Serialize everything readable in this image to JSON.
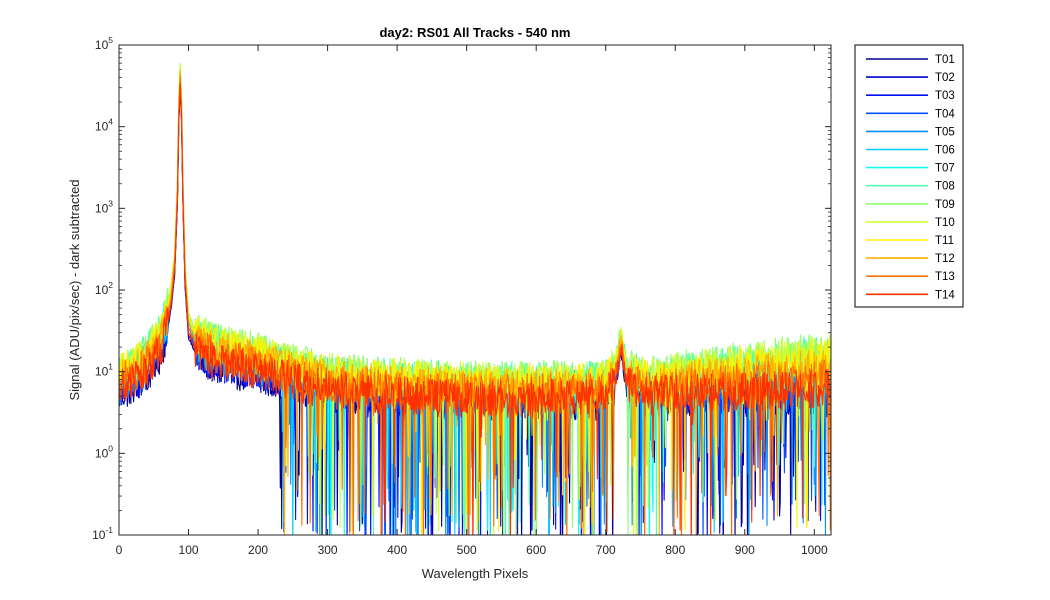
{
  "chart_data": {
    "type": "line",
    "title": "day2: RS01  All Tracks - 540 nm",
    "xlabel": "Wavelength Pixels",
    "ylabel": "Signal (ADU/pix/sec) - dark subtracted",
    "xlim": [
      0,
      1024
    ],
    "ylim": [
      0.1,
      100000
    ],
    "yscale": "log",
    "grid": false,
    "legend_position": "outside-right",
    "x_ticks": [
      0,
      100,
      200,
      300,
      400,
      500,
      600,
      700,
      800,
      900,
      1000
    ],
    "y_ticks": [
      {
        "value": 0.1,
        "base": "10",
        "exp": "-1"
      },
      {
        "value": 1,
        "base": "10",
        "exp": "0"
      },
      {
        "value": 10,
        "base": "10",
        "exp": "1"
      },
      {
        "value": 100,
        "base": "10",
        "exp": "2"
      },
      {
        "value": 1000,
        "base": "10",
        "exp": "3"
      },
      {
        "value": 10000,
        "base": "10",
        "exp": "4"
      },
      {
        "value": 100000,
        "base": "10",
        "exp": "5"
      }
    ],
    "profile_points": {
      "x": [
        0,
        20,
        40,
        60,
        70,
        75,
        80,
        84,
        86,
        88,
        90,
        92,
        95,
        100,
        110,
        130,
        150,
        200,
        250,
        300,
        400,
        500,
        600,
        680,
        700,
        712,
        718,
        722,
        726,
        730,
        740,
        760,
        800,
        900,
        1024
      ],
      "y": [
        7,
        9,
        12,
        22,
        45,
        80,
        200,
        1500,
        15000,
        40000,
        15000,
        1500,
        150,
        35,
        22,
        17,
        15,
        12,
        9,
        7,
        6,
        5.5,
        5.5,
        5.5,
        6,
        8,
        14,
        22,
        14,
        8,
        7,
        6,
        6,
        6,
        6
      ]
    },
    "series": [
      {
        "name": "T01",
        "color": "#00008f",
        "scale": 0.75
      },
      {
        "name": "T02",
        "color": "#0000cf",
        "scale": 0.8
      },
      {
        "name": "T03",
        "color": "#0010ff",
        "scale": 0.85
      },
      {
        "name": "T04",
        "color": "#0050ff",
        "scale": 0.9
      },
      {
        "name": "T05",
        "color": "#0090ff",
        "scale": 1.0
      },
      {
        "name": "T06",
        "color": "#00d0ff",
        "scale": 1.1
      },
      {
        "name": "T07",
        "color": "#10ffef",
        "scale": 1.25
      },
      {
        "name": "T08",
        "color": "#50ffaf",
        "scale": 1.4
      },
      {
        "name": "T09",
        "color": "#8fff70",
        "scale": 1.45
      },
      {
        "name": "T10",
        "color": "#cfff30",
        "scale": 1.4
      },
      {
        "name": "T11",
        "color": "#ffef00",
        "scale": 1.3
      },
      {
        "name": "T12",
        "color": "#ffaf00",
        "scale": 1.15
      },
      {
        "name": "T13",
        "color": "#ff7000",
        "scale": 1.0
      },
      {
        "name": "T14",
        "color": "#ff3000",
        "scale": 0.85
      }
    ]
  }
}
